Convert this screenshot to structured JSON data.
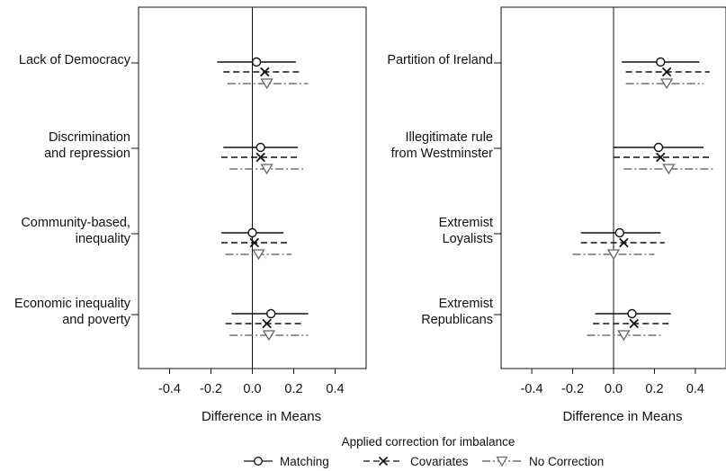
{
  "chart_data": [
    {
      "type": "forest",
      "xlabel": "Difference in Means",
      "xlim": [
        -0.55,
        0.55
      ],
      "xticks": [
        -0.4,
        -0.2,
        0.0,
        0.2,
        0.4
      ],
      "reference_line": 0,
      "categories": [
        "Lack of Democracy",
        "Discrimination and repression",
        "Community-based, inequality",
        "Economic inequality and poverty"
      ],
      "category_lines": [
        [
          "Lack of Democracy"
        ],
        [
          "Discrimination",
          "and repression"
        ],
        [
          "Community-based,",
          "inequality"
        ],
        [
          "Economic inequality",
          "and poverty"
        ]
      ],
      "series": [
        {
          "name": "Matching",
          "estimate": [
            0.02,
            0.04,
            0.0,
            0.09
          ],
          "lower": [
            -0.17,
            -0.14,
            -0.15,
            -0.1
          ],
          "upper": [
            0.21,
            0.22,
            0.15,
            0.27
          ]
        },
        {
          "name": "Covariates",
          "estimate": [
            0.06,
            0.04,
            0.01,
            0.07
          ],
          "lower": [
            -0.14,
            -0.15,
            -0.15,
            -0.13
          ],
          "upper": [
            0.24,
            0.23,
            0.17,
            0.25
          ]
        },
        {
          "name": "No Correction",
          "estimate": [
            0.07,
            0.07,
            0.03,
            0.08
          ],
          "lower": [
            -0.12,
            -0.11,
            -0.13,
            -0.11
          ],
          "upper": [
            0.27,
            0.26,
            0.19,
            0.27
          ]
        }
      ]
    },
    {
      "type": "forest",
      "xlabel": "Difference in Means",
      "xlim": [
        -0.55,
        0.55
      ],
      "xticks": [
        -0.4,
        -0.2,
        0.0,
        0.2,
        0.4
      ],
      "reference_line": 0,
      "categories": [
        "Partition of Ireland",
        "Illegitimate rule from Westminster",
        "Extremist Loyalists",
        "Extremist Republicans"
      ],
      "category_lines": [
        [
          "Partition of Ireland"
        ],
        [
          "Illegitimate rule",
          "from Westminster"
        ],
        [
          "Extremist",
          "Loyalists"
        ],
        [
          "Extremist",
          "Republicans"
        ]
      ],
      "series": [
        {
          "name": "Matching",
          "estimate": [
            0.23,
            0.22,
            0.03,
            0.09
          ],
          "lower": [
            0.04,
            0.0,
            -0.16,
            -0.09
          ],
          "upper": [
            0.42,
            0.44,
            0.23,
            0.28
          ]
        },
        {
          "name": "Covariates",
          "estimate": [
            0.26,
            0.23,
            0.05,
            0.1
          ],
          "lower": [
            0.06,
            0.0,
            -0.16,
            -0.1
          ],
          "upper": [
            0.47,
            0.47,
            0.25,
            0.28
          ]
        },
        {
          "name": "No Correction",
          "estimate": [
            0.26,
            0.27,
            0.0,
            0.05
          ],
          "lower": [
            0.06,
            0.05,
            -0.2,
            -0.13
          ],
          "upper": [
            0.44,
            0.49,
            0.2,
            0.24
          ]
        }
      ]
    }
  ],
  "legend": {
    "title": "Applied correction for imbalance",
    "items": [
      "Matching",
      "Covariates",
      "No Correction"
    ]
  }
}
